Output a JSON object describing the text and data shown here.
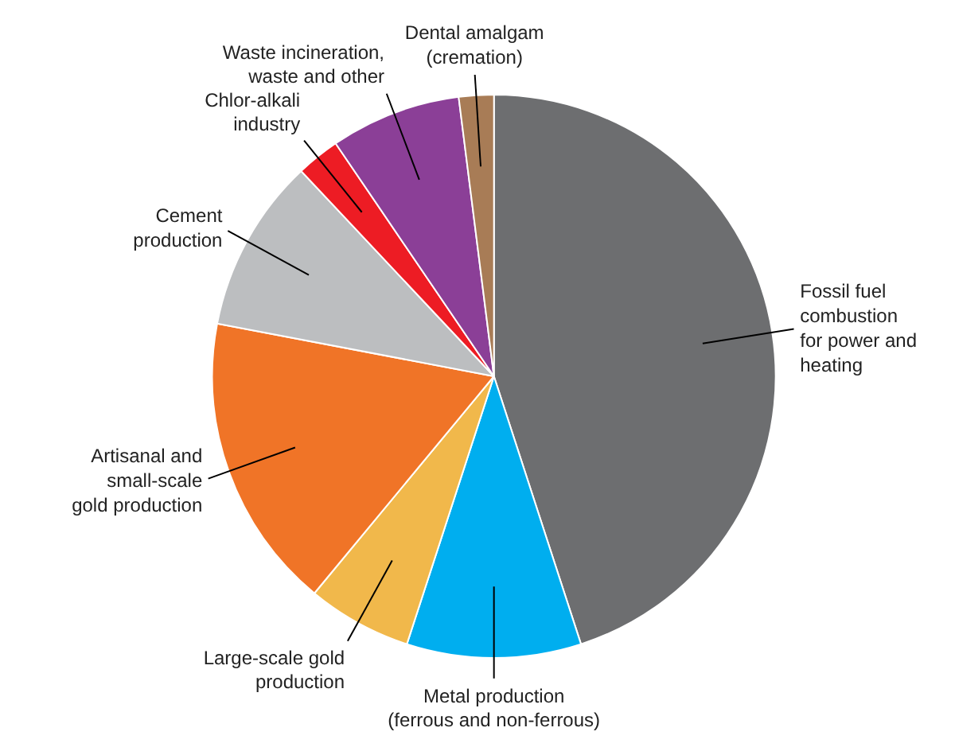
{
  "chart_data": {
    "type": "pie",
    "categories": [
      "Fossil fuel\ncombustion\nfor power and\nheating",
      "Metal production\n(ferrous and non-ferrous)",
      "Large-scale gold\nproduction",
      "Artisanal and\nsmall-scale\ngold production",
      "Cement\nproduction",
      "Chlor-alkali\nindustry",
      "Waste incineration,\nwaste and other",
      "Dental amalgam\n(cremation)"
    ],
    "values": [
      45,
      10,
      6,
      17,
      10,
      2.5,
      7.5,
      2
    ],
    "colors": [
      "#6d6e70",
      "#00aeef",
      "#f1b84b",
      "#f07427",
      "#bcbec0",
      "#ed1c24",
      "#8b3f97",
      "#a87c56"
    ]
  }
}
